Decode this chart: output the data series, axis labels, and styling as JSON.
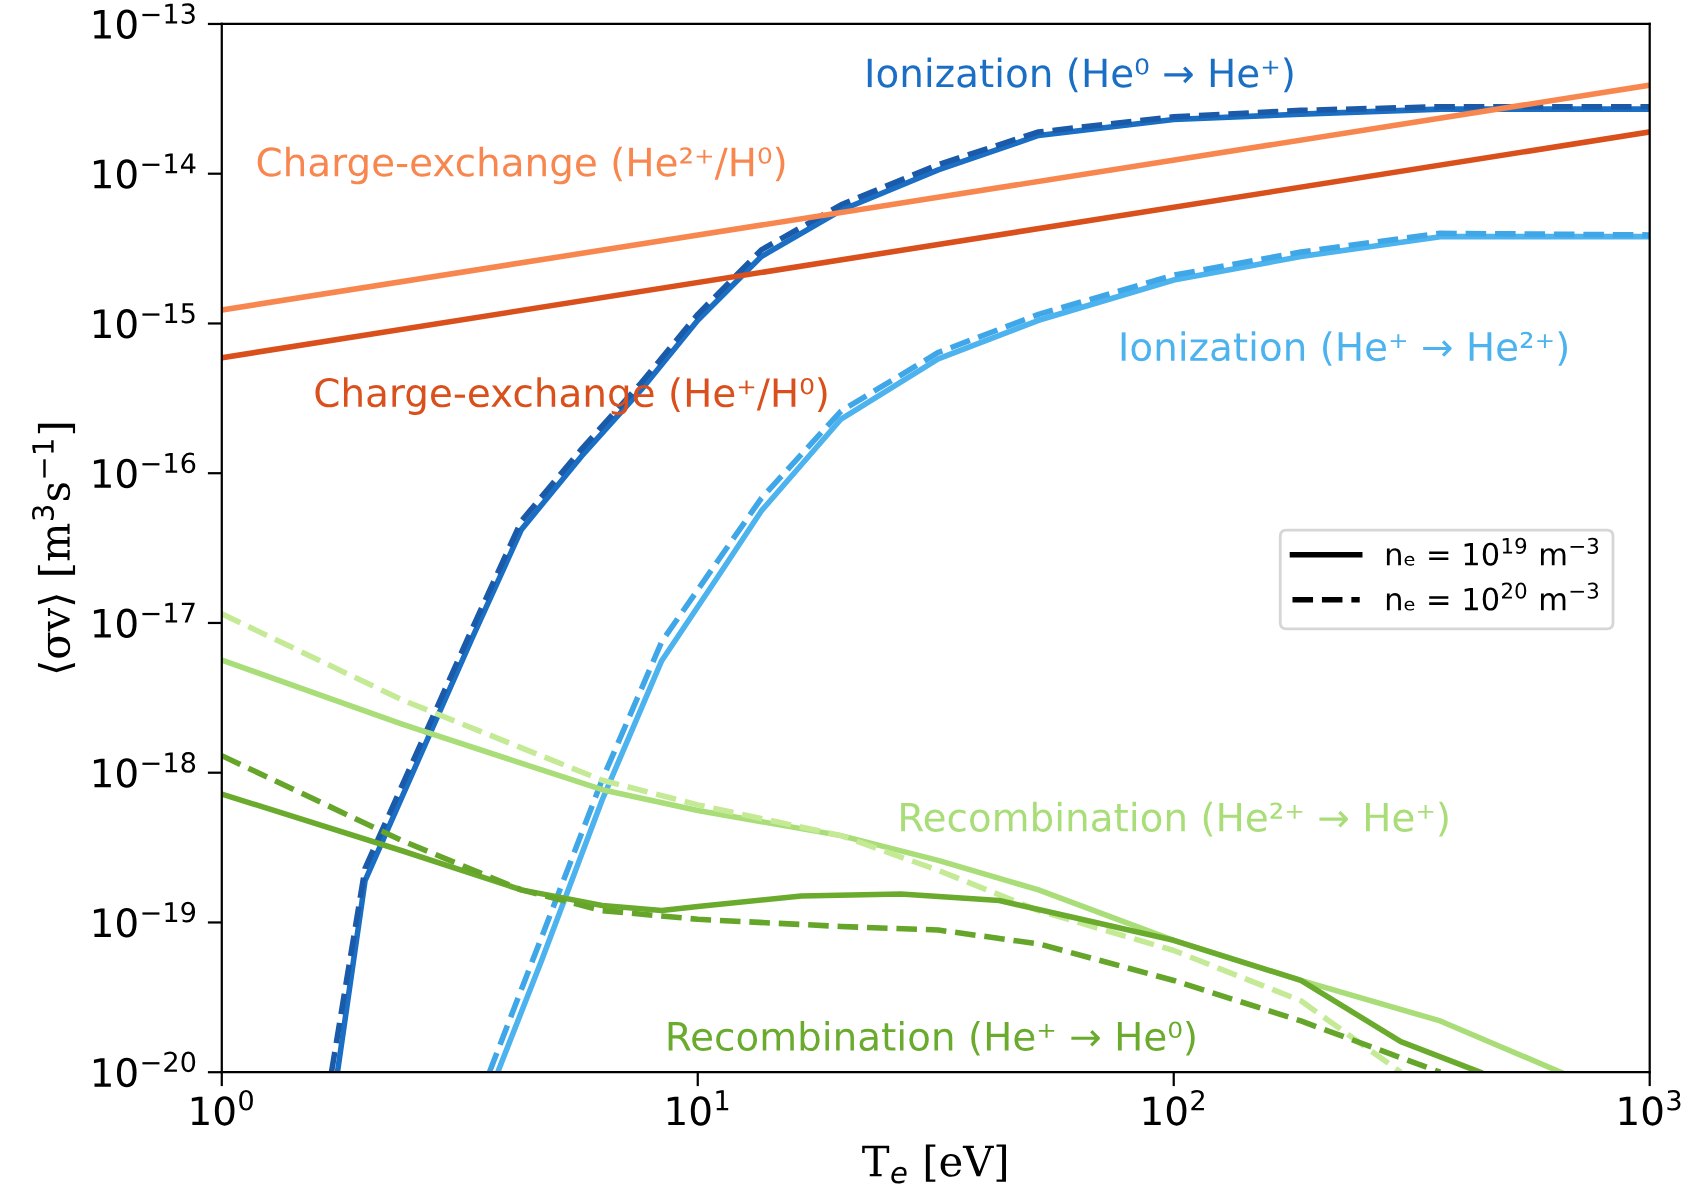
{
  "chart_data": {
    "type": "line",
    "xlabel": "T$_{e}$ [eV]",
    "ylabel": "⟨σv⟩ [m$^{3}$s$^{−1}$]",
    "log": "xy",
    "xlim": [
      1,
      1000
    ],
    "ylim": [
      1e-20,
      1e-13
    ],
    "xticks": [
      {
        "value": 1,
        "label": "10$^{0}$"
      },
      {
        "value": 10,
        "label": "10$^{1}$"
      },
      {
        "value": 100,
        "label": "10$^{2}$"
      },
      {
        "value": 1000,
        "label": "10$^{3}$"
      }
    ],
    "yticks": [
      {
        "value": 1e-20,
        "label": "10$^{−20}$"
      },
      {
        "value": 1e-19,
        "label": "10$^{−19}$"
      },
      {
        "value": 1e-18,
        "label": "10$^{−18}$"
      },
      {
        "value": 1e-17,
        "label": "10$^{−17}$"
      },
      {
        "value": 1e-16,
        "label": "10$^{−16}$"
      },
      {
        "value": 1e-15,
        "label": "10$^{−15}$"
      },
      {
        "value": 1e-14,
        "label": "10$^{−14}$"
      },
      {
        "value": 1e-13,
        "label": "10$^{−13}$"
      }
    ],
    "grid": false,
    "legend": "center right",
    "marker": "none",
    "series": [
      {
        "name": "Ionization (He⁰ → He⁺)",
        "line_style": "solid",
        "color": "#1a6fc4",
        "x": [
          1.75,
          2,
          3.35,
          4.26,
          5.7,
          7.6,
          10,
          13.6,
          20,
          32,
          52,
          100,
          185,
          363,
          1000
        ],
        "values": [
          1e-20,
          1.9e-19,
          7.8e-18,
          4.2e-17,
          1.3e-16,
          3.6e-16,
          1.05e-15,
          2.8e-15,
          5.7e-15,
          1.06e-14,
          1.8e-14,
          2.3e-14,
          2.5e-14,
          2.7e-14,
          2.7e-14
        ]
      },
      {
        "line_style": "dashed",
        "color": "#1a5aa8",
        "x": [
          1.7,
          2,
          3.35,
          4.26,
          5.7,
          7.6,
          10,
          13.6,
          20,
          32,
          52,
          100,
          185,
          363,
          1000
        ],
        "values": [
          1e-20,
          2.3e-19,
          9e-18,
          4.8e-17,
          1.45e-16,
          4e-16,
          1.15e-15,
          3.1e-15,
          6.2e-15,
          1.15e-14,
          1.9e-14,
          2.4e-14,
          2.65e-14,
          2.8e-14,
          2.8e-14
        ]
      },
      {
        "name": "Ionization (He⁺ → He²⁺)",
        "line_style": "solid",
        "color": "#4db3ee",
        "x": [
          3.8,
          4.7,
          6.3,
          8.4,
          11.2,
          13.6,
          20,
          32,
          52,
          100,
          185,
          363,
          1000
        ],
        "values": [
          1e-20,
          5.6e-20,
          6.6e-19,
          5.6e-18,
          2.2e-17,
          5.6e-17,
          2.3e-16,
          5.8e-16,
          1.05e-15,
          1.95e-15,
          2.8e-15,
          3.8e-15,
          3.8e-15
        ]
      },
      {
        "line_style": "dashed",
        "color": "#3fa6e8",
        "x": [
          3.65,
          4.7,
          6.3,
          8.4,
          11.2,
          13.6,
          20,
          32,
          52,
          100,
          185,
          363,
          1000
        ],
        "values": [
          1e-20,
          8e-20,
          9e-19,
          7.5e-18,
          2.8e-17,
          6.8e-17,
          2.6e-16,
          6.4e-16,
          1.15e-15,
          2.1e-15,
          3e-15,
          4e-15,
          3.9e-15
        ]
      },
      {
        "name": "Charge-exchange (He²⁺/H⁰)",
        "line_style": "solid",
        "color": "#f8874f",
        "x": [
          1,
          1000
        ],
        "values": [
          1.23e-15,
          3.9e-14
        ]
      },
      {
        "name": "Charge-exchange (He⁺/H⁰)",
        "line_style": "solid",
        "color": "#d9501c",
        "x": [
          1,
          1000
        ],
        "values": [
          5.9e-16,
          1.9e-14
        ]
      },
      {
        "name": "Recombination (He²⁺ → He⁺)",
        "line_style": "solid",
        "color": "#a8dd78",
        "x": [
          1,
          2.4,
          6.3,
          10,
          20,
          32,
          52,
          100,
          185,
          363,
          650
        ],
        "values": [
          5.65e-18,
          2.1e-18,
          7.7e-19,
          5.6e-19,
          3.8e-19,
          2.6e-19,
          1.65e-19,
          7.6e-20,
          4.1e-20,
          2.2e-20,
          1e-20
        ]
      },
      {
        "line_style": "dashed",
        "color": "#c4ea96",
        "x": [
          1,
          2.4,
          6.3,
          10,
          20,
          32,
          52,
          100,
          185,
          300
        ],
        "values": [
          1.15e-17,
          3.05e-18,
          8.9e-19,
          6.1e-19,
          3.8e-19,
          2.23e-19,
          1.2e-19,
          6.5e-20,
          3e-20,
          1e-20
        ]
      },
      {
        "name": "Recombination (He⁺ → He⁰)",
        "line_style": "solid",
        "color": "#6aab2e",
        "x": [
          1,
          2.4,
          4.26,
          6.3,
          8.4,
          10,
          16.5,
          26.7,
          43,
          64,
          100,
          185,
          300,
          440
        ],
        "values": [
          7.2e-19,
          3e-19,
          1.65e-19,
          1.3e-19,
          1.2e-19,
          1.28e-19,
          1.5e-19,
          1.55e-19,
          1.4e-19,
          1.05e-19,
          7.6e-20,
          4.1e-20,
          1.6e-20,
          1e-20
        ]
      },
      {
        "line_style": "dashed",
        "color": "#64a52a",
        "x": [
          1,
          2.4,
          4.26,
          6.3,
          10,
          20,
          32,
          52,
          100,
          185,
          363
        ],
        "values": [
          1.3e-18,
          3.5e-19,
          1.65e-19,
          1.2e-19,
          1.05e-19,
          9.4e-20,
          8.9e-20,
          7.2e-20,
          4.1e-20,
          2.2e-20,
          1e-20
        ]
      }
    ],
    "annotations": [
      "nₑ = 10$^{19}$ m$^{−3}$",
      "nₑ = 10$^{20}$ m$^{−3}$"
    ]
  }
}
